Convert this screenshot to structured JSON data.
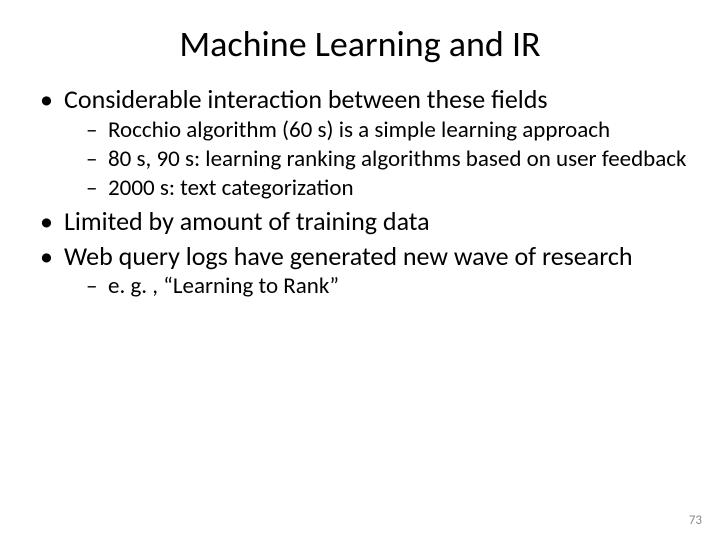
{
  "slide": {
    "title": "Machine Learning and IR",
    "page_number": "73",
    "background_color": "#ffffff",
    "text_color": "#000000",
    "page_number_color": "#8b8b8b",
    "title_fontsize": 36,
    "body_fontsize_l1": 26,
    "body_fontsize_l2": 23,
    "bullets": [
      {
        "text": "Considerable interaction between these fields",
        "sub": [
          {
            "text": "Rocchio algorithm (60 s) is a simple learning approach"
          },
          {
            "text": "80 s, 90 s: learning ranking algorithms based on user feedback"
          },
          {
            "text": "2000 s: text categorization"
          }
        ]
      },
      {
        "text": "Limited by amount of training data",
        "sub": []
      },
      {
        "text": "Web query logs have generated new wave of research",
        "sub": [
          {
            "text": "e. g. , “Learning to Rank”"
          }
        ]
      }
    ]
  }
}
